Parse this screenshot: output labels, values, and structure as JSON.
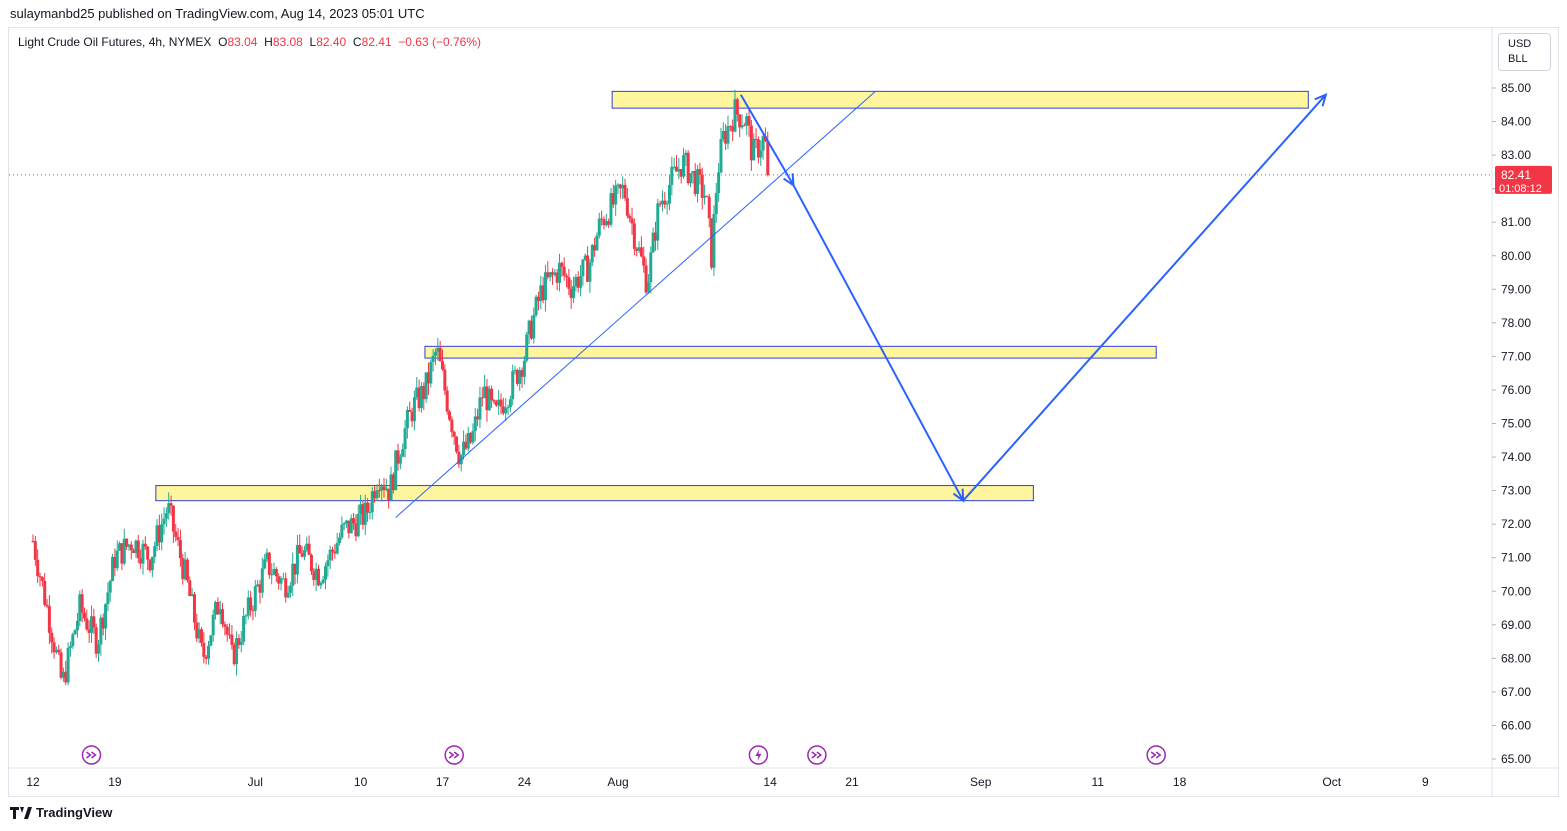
{
  "header": {
    "published_text": "sulaymanbd25 published on TradingView.com, Aug 14, 2023 05:01 UTC"
  },
  "legend": {
    "symbol": "Light Crude Oil Futures, 4h, NYMEX",
    "open_label": "O",
    "open": "83.04",
    "high_label": "H",
    "high": "83.08",
    "low_label": "L",
    "low": "82.40",
    "close_label": "C",
    "close": "82.41",
    "change": "−0.63 (−0.76%)"
  },
  "currency": {
    "line1": "USD",
    "line2": "BLL"
  },
  "price_badge": {
    "price": "82.41",
    "countdown": "01:08:12"
  },
  "footer": {
    "brand": "TradingView"
  },
  "colors": {
    "up": "#22ab94",
    "down": "#f23645",
    "zone_fill": "#fff59d",
    "zone_border": "#2f3fe0",
    "arrow": "#2962ff",
    "event_icon": "#9c27b0"
  },
  "chart_data": {
    "type": "candlestick",
    "ylim": [
      64.6,
      86.0
    ],
    "y_ticks": [
      "65.00",
      "66.00",
      "67.00",
      "68.00",
      "69.00",
      "70.00",
      "71.00",
      "72.00",
      "73.00",
      "74.00",
      "75.00",
      "76.00",
      "77.00",
      "78.00",
      "79.00",
      "80.00",
      "81.00",
      "82.00",
      "83.00",
      "84.00",
      "85.00"
    ],
    "x_labels": [
      {
        "label": "12",
        "day": 0
      },
      {
        "label": "19",
        "day": 7
      },
      {
        "label": "Jul",
        "day": 19
      },
      {
        "label": "10",
        "day": 28
      },
      {
        "label": "17",
        "day": 35
      },
      {
        "label": "24",
        "day": 42
      },
      {
        "label": "Aug",
        "day": 50
      },
      {
        "label": "14",
        "day": 63
      },
      {
        "label": "21",
        "day": 70
      },
      {
        "label": "Sep",
        "day": 81
      },
      {
        "label": "11",
        "day": 91
      },
      {
        "label": "18",
        "day": 98
      },
      {
        "label": "Oct",
        "day": 111
      },
      {
        "label": "9",
        "day": 119
      }
    ],
    "price_path": [
      [
        0,
        71.5
      ],
      [
        1.5,
        69.0
      ],
      [
        2.5,
        67.2
      ],
      [
        4,
        69.5
      ],
      [
        5.5,
        68.5
      ],
      [
        7,
        71.0
      ],
      [
        8.5,
        71.5
      ],
      [
        10,
        71.0
      ],
      [
        11.5,
        72.5
      ],
      [
        13,
        70.5
      ],
      [
        14.5,
        68.0
      ],
      [
        16,
        69.8
      ],
      [
        17,
        68.0
      ],
      [
        18.5,
        69.5
      ],
      [
        20,
        70.8
      ],
      [
        21.5,
        70.2
      ],
      [
        23,
        71.2
      ],
      [
        24.5,
        70.5
      ],
      [
        26.5,
        71.8
      ],
      [
        28.5,
        72.3
      ],
      [
        29.5,
        73.5
      ],
      [
        30.5,
        73.0
      ],
      [
        31.5,
        74.5
      ],
      [
        32.5,
        75.5
      ],
      [
        33.5,
        76.0
      ],
      [
        34.5,
        77.2
      ],
      [
        35.5,
        75.5
      ],
      [
        36.5,
        74.0
      ],
      [
        37.5,
        74.5
      ],
      [
        38.5,
        76.0
      ],
      [
        39.5,
        75.2
      ],
      [
        41,
        76.2
      ],
      [
        42,
        77.0
      ],
      [
        42.5,
        77.8
      ],
      [
        43.5,
        79.0
      ],
      [
        45,
        79.6
      ],
      [
        46,
        79.1
      ],
      [
        47.5,
        79.7
      ],
      [
        48.5,
        81.0
      ],
      [
        49.5,
        81.5
      ],
      [
        50.5,
        82.0
      ],
      [
        51.5,
        80.5
      ],
      [
        52.5,
        79.2
      ],
      [
        53.5,
        81.5
      ],
      [
        54.5,
        82.2
      ],
      [
        55.5,
        82.8
      ],
      [
        56.5,
        82.3
      ],
      [
        57.5,
        81.8
      ],
      [
        58,
        80.0
      ],
      [
        58.5,
        82.5
      ],
      [
        59,
        83.5
      ],
      [
        60,
        84.3
      ],
      [
        61,
        84.0
      ],
      [
        61.5,
        83.0
      ],
      [
        62.5,
        83.5
      ],
      [
        63,
        82.4
      ]
    ],
    "last_price": 82.41,
    "support_resistance_zones": [
      {
        "from_day": 49.5,
        "to_day": 109,
        "low": 84.4,
        "high": 84.9
      },
      {
        "from_day": 33.5,
        "to_day": 96,
        "low": 76.95,
        "high": 77.3
      },
      {
        "from_day": 10.5,
        "to_day": 85.5,
        "low": 72.7,
        "high": 73.15
      }
    ],
    "trendline": {
      "from": [
        31,
        72.2
      ],
      "to": [
        72,
        84.9
      ]
    },
    "projection_arrows": [
      {
        "from": [
          60.5,
          84.8
        ],
        "to": [
          65,
          82.1
        ]
      },
      {
        "from": [
          65,
          82.1
        ],
        "to": [
          79.5,
          72.7
        ]
      },
      {
        "from": [
          79.5,
          72.7
        ],
        "to": [
          110.5,
          84.8
        ]
      }
    ],
    "event_markers": [
      {
        "day": 5,
        "kind": "dividend"
      },
      {
        "day": 36,
        "kind": "dividend"
      },
      {
        "day": 62,
        "kind": "earnings"
      },
      {
        "day": 67,
        "kind": "dividend"
      },
      {
        "day": 96,
        "kind": "dividend"
      }
    ]
  }
}
